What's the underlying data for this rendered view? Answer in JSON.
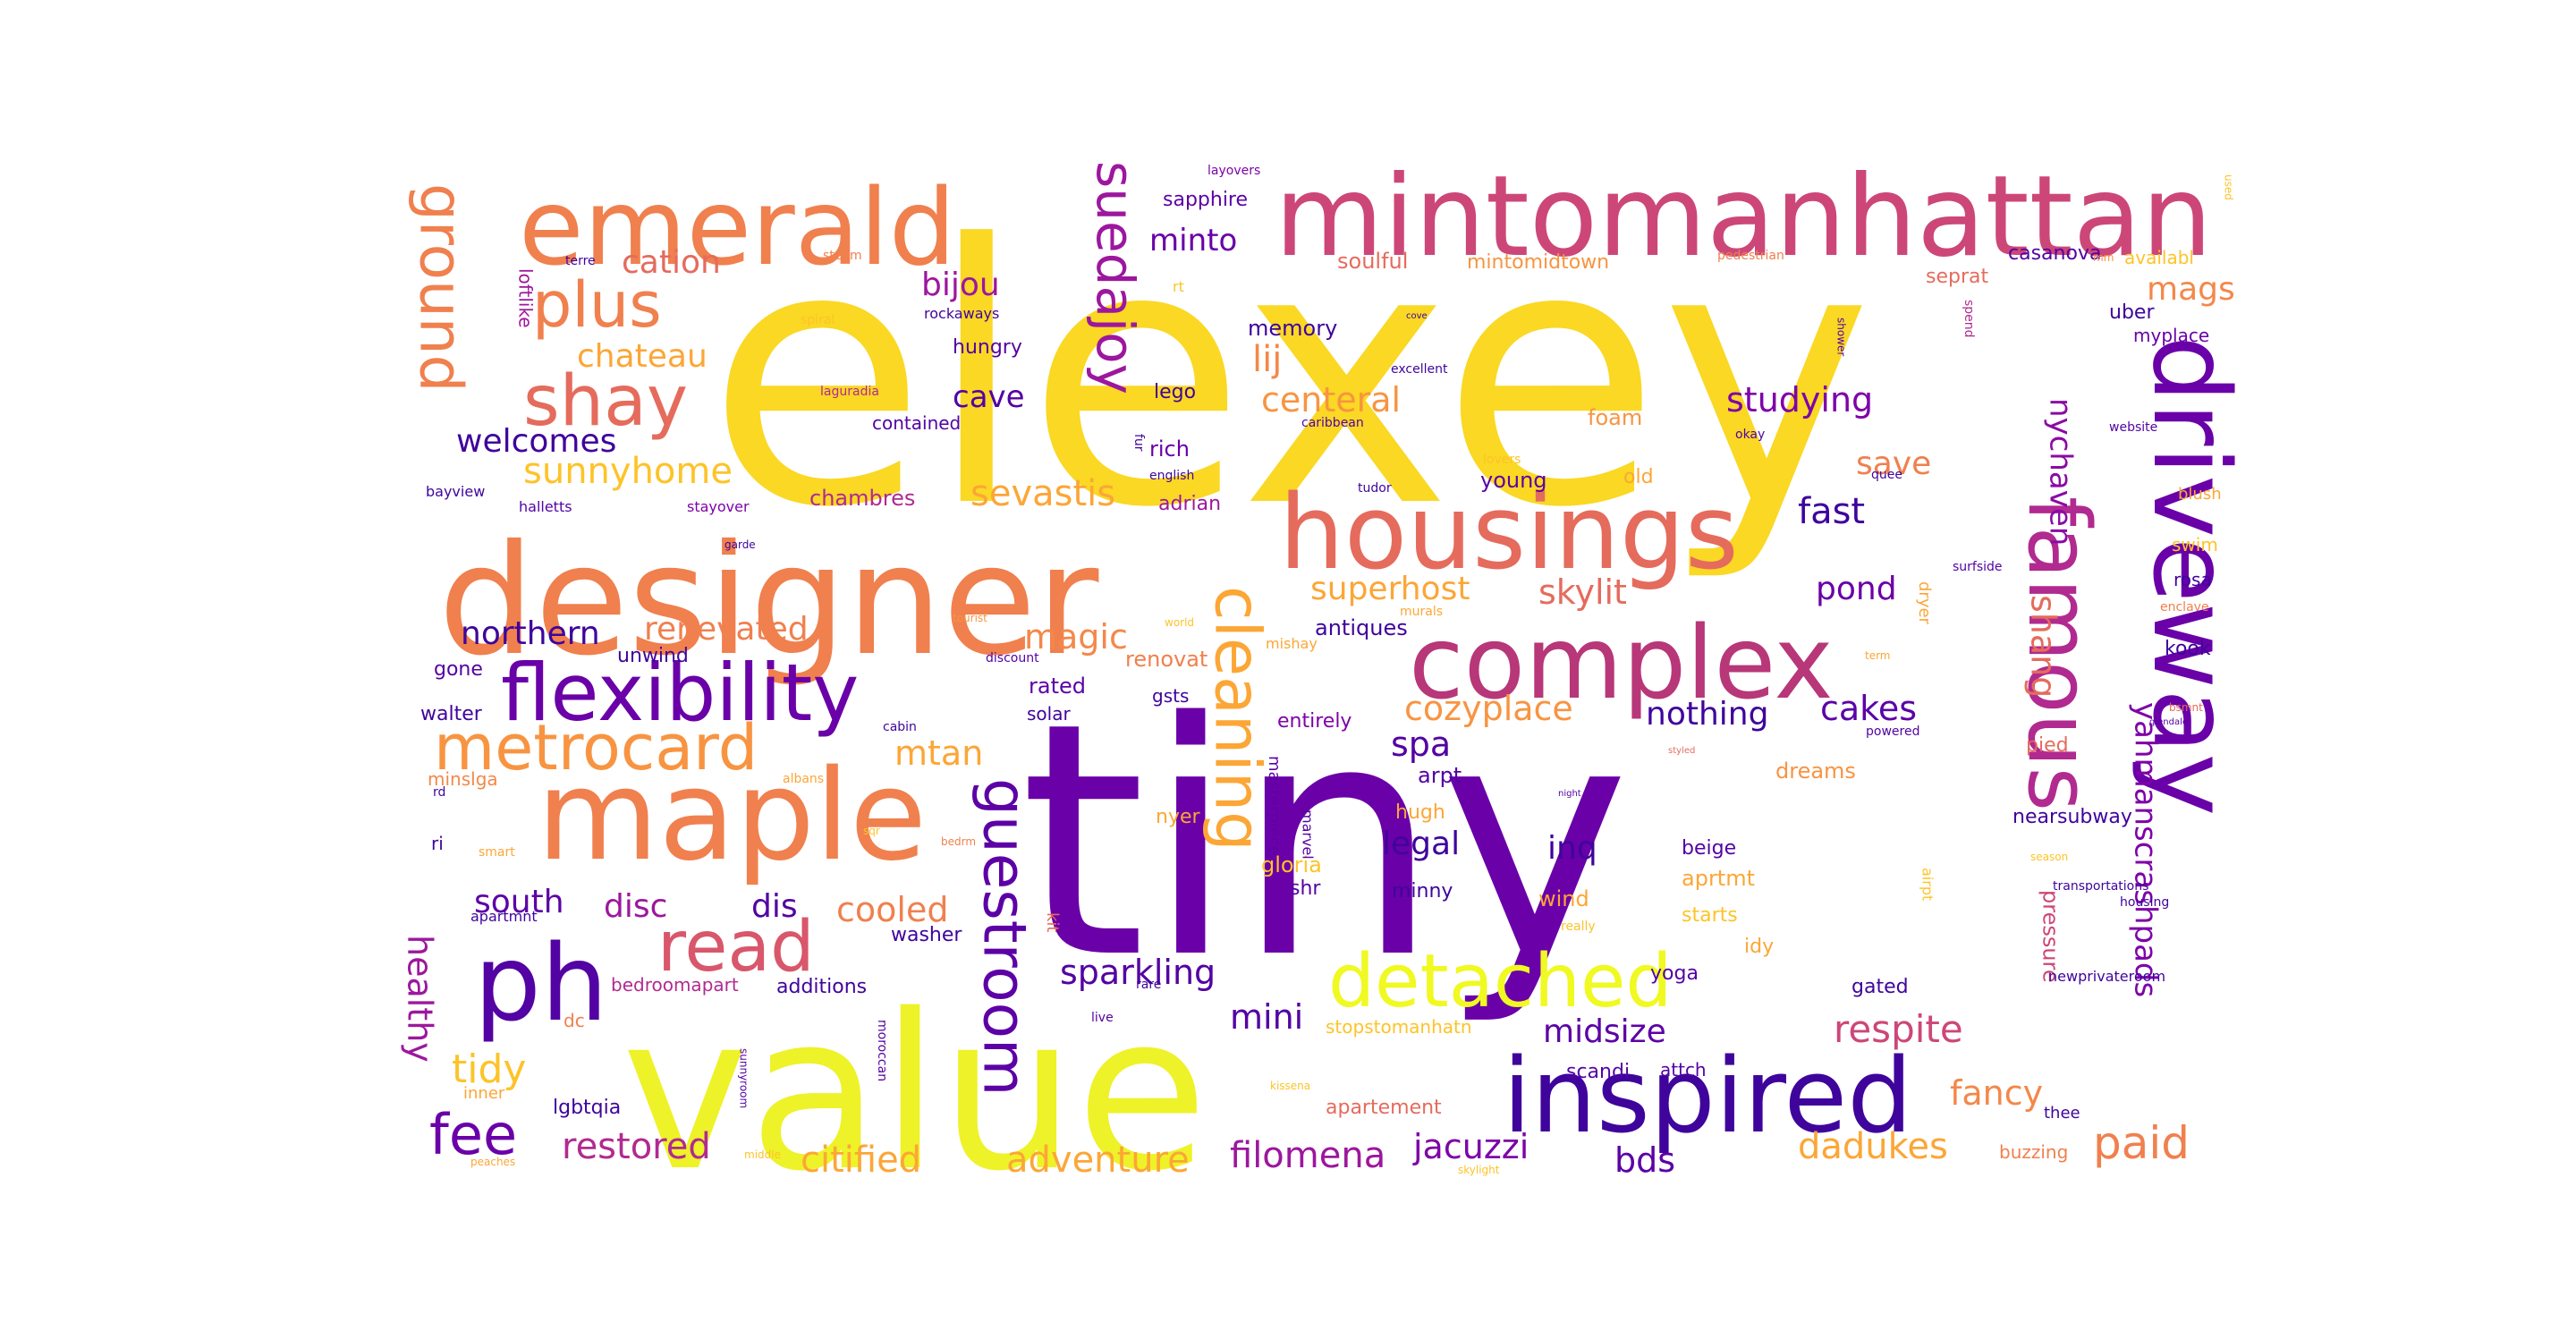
{
  "palette": "plasma",
  "words": [
    {
      "text": "elexey",
      "color": "#fad824"
    },
    {
      "text": "tiny",
      "color": "#6a00a8"
    },
    {
      "text": "value",
      "color": "#eef228"
    },
    {
      "text": "designer",
      "color": "#f0804e"
    },
    {
      "text": "mintomanhattan",
      "color": "#cc4778"
    },
    {
      "text": "emerald",
      "color": "#f0804e"
    },
    {
      "text": "housings",
      "color": "#e56b5d"
    },
    {
      "text": "driveway",
      "color": "#6a00a8"
    },
    {
      "text": "maple",
      "color": "#f0804e"
    },
    {
      "text": "complex",
      "color": "#b73779"
    },
    {
      "text": "famous",
      "color": "#b12a90"
    },
    {
      "text": "inspired",
      "color": "#3f049c"
    },
    {
      "text": "flexibility",
      "color": "#6a00a8"
    },
    {
      "text": "ph",
      "color": "#5302a3"
    },
    {
      "text": "detached",
      "color": "#f0f921"
    },
    {
      "text": "shay",
      "color": "#e56b5d"
    },
    {
      "text": "read",
      "color": "#d8576b"
    },
    {
      "text": "guestroom",
      "color": "#5c01a6"
    },
    {
      "text": "cleaning",
      "color": "#fca636"
    },
    {
      "text": "suedajoy",
      "color": "#9c179e"
    },
    {
      "text": "metrocard",
      "color": "#f89441"
    },
    {
      "text": "plus",
      "color": "#f0804e"
    },
    {
      "text": "ground",
      "color": "#f0804e"
    },
    {
      "text": "yahmanscrashpads",
      "color": "#7e03a8"
    },
    {
      "text": "nychaven",
      "color": "#8b0aa5"
    },
    {
      "text": "fee",
      "color": "#6a00a8"
    },
    {
      "text": "paid",
      "color": "#f0804e"
    },
    {
      "text": "mags",
      "color": "#f48849"
    },
    {
      "text": "sunnyhome",
      "color": "#fdc328"
    },
    {
      "text": "welcomes",
      "color": "#3f049c"
    },
    {
      "text": "cation",
      "color": "#e56b5d"
    },
    {
      "text": "bijou",
      "color": "#9c179e"
    },
    {
      "text": "chateau",
      "color": "#fca636"
    },
    {
      "text": "cave",
      "color": "#5302a3"
    },
    {
      "text": "lij",
      "color": "#f48849"
    },
    {
      "text": "minto",
      "color": "#6a00a8"
    },
    {
      "text": "centeral",
      "color": "#f89441"
    },
    {
      "text": "studying",
      "color": "#7e03a8"
    },
    {
      "text": "save",
      "color": "#f0804e"
    },
    {
      "text": "fast",
      "color": "#3f049c"
    },
    {
      "text": "pond",
      "color": "#6a00a8"
    },
    {
      "text": "superhost",
      "color": "#fca636"
    },
    {
      "text": "skylit",
      "color": "#e56b5d"
    },
    {
      "text": "sevastis",
      "color": "#fca636"
    },
    {
      "text": "renevated",
      "color": "#f0804e"
    },
    {
      "text": "northern",
      "color": "#3f049c"
    },
    {
      "text": "magic",
      "color": "#f48849"
    },
    {
      "text": "nothing",
      "color": "#3f049c"
    },
    {
      "text": "cakes",
      "color": "#5c01a6"
    },
    {
      "text": "cozyplace",
      "color": "#f89441"
    },
    {
      "text": "spa",
      "color": "#5302a3"
    },
    {
      "text": "mtan",
      "color": "#fca636"
    },
    {
      "text": "legal",
      "color": "#3f049c"
    },
    {
      "text": "inq",
      "color": "#3f049c"
    },
    {
      "text": "shang",
      "color": "#e56b5d"
    },
    {
      "text": "south",
      "color": "#5c01a6"
    },
    {
      "text": "disc",
      "color": "#9c179e"
    },
    {
      "text": "dis",
      "color": "#5302a3"
    },
    {
      "text": "cooled",
      "color": "#f0804e"
    },
    {
      "text": "sparkling",
      "color": "#5302a3"
    },
    {
      "text": "midsize",
      "color": "#5c01a6"
    },
    {
      "text": "respite",
      "color": "#cc4778"
    },
    {
      "text": "mini",
      "color": "#5302a3"
    },
    {
      "text": "tidy",
      "color": "#fdc328"
    },
    {
      "text": "fancy",
      "color": "#f48849"
    },
    {
      "text": "restored",
      "color": "#b12a90"
    },
    {
      "text": "citified",
      "color": "#fca636"
    },
    {
      "text": "adventure",
      "color": "#fca636"
    },
    {
      "text": "filomena",
      "color": "#9c179e"
    },
    {
      "text": "jacuzzi",
      "color": "#7e03a8"
    },
    {
      "text": "bds",
      "color": "#5c01a6"
    },
    {
      "text": "dadukes",
      "color": "#fca636"
    },
    {
      "text": "healthy",
      "color": "#9c179e"
    },
    {
      "text": "pressure",
      "color": "#cc4778"
    },
    {
      "text": "sapphire",
      "color": "#5c01a6"
    },
    {
      "text": "soulful",
      "color": "#e56b5d"
    },
    {
      "text": "mintomidtown",
      "color": "#f89441"
    },
    {
      "text": "memory",
      "color": "#3f049c"
    },
    {
      "text": "hungry",
      "color": "#5302a3"
    },
    {
      "text": "contained",
      "color": "#5302a3"
    },
    {
      "text": "lego",
      "color": "#3f049c"
    },
    {
      "text": "rich",
      "color": "#6a00a8"
    },
    {
      "text": "foam",
      "color": "#f89441"
    },
    {
      "text": "young",
      "color": "#5c01a6"
    },
    {
      "text": "old",
      "color": "#fca636"
    },
    {
      "text": "adrian",
      "color": "#9c179e"
    },
    {
      "text": "chambres",
      "color": "#b12a90"
    },
    {
      "text": "antiques",
      "color": "#3f049c"
    },
    {
      "text": "renovat",
      "color": "#f0804e"
    },
    {
      "text": "unwind",
      "color": "#3f049c"
    },
    {
      "text": "gone",
      "color": "#5302a3"
    },
    {
      "text": "walter",
      "color": "#3f049c"
    },
    {
      "text": "rated",
      "color": "#5c01a6"
    },
    {
      "text": "solar",
      "color": "#3f049c"
    },
    {
      "text": "gsts",
      "color": "#3f049c"
    },
    {
      "text": "entirely",
      "color": "#7e03a8"
    },
    {
      "text": "arpt",
      "color": "#5302a3"
    },
    {
      "text": "hugh",
      "color": "#fca636"
    },
    {
      "text": "dreams",
      "color": "#f89441"
    },
    {
      "text": "nyer",
      "color": "#fca636"
    },
    {
      "text": "nearsubway",
      "color": "#3f049c"
    },
    {
      "text": "beige",
      "color": "#5302a3"
    },
    {
      "text": "aprtmt",
      "color": "#fca636"
    },
    {
      "text": "starts",
      "color": "#fdc328"
    },
    {
      "text": "idy",
      "color": "#fca636"
    },
    {
      "text": "yoga",
      "color": "#5302a3"
    },
    {
      "text": "gated",
      "color": "#3f049c"
    },
    {
      "text": "wind",
      "color": "#fca636"
    },
    {
      "text": "gloria",
      "color": "#fdc328"
    },
    {
      "text": "shr",
      "color": "#5302a3"
    },
    {
      "text": "minny",
      "color": "#3f049c"
    },
    {
      "text": "washer",
      "color": "#3f049c"
    },
    {
      "text": "additions",
      "color": "#3f049c"
    },
    {
      "text": "bedroomapart",
      "color": "#b12a90"
    },
    {
      "text": "lgbtqia",
      "color": "#3f049c"
    },
    {
      "text": "apartement",
      "color": "#e56b5d"
    },
    {
      "text": "scandi",
      "color": "#5302a3"
    },
    {
      "text": "attch",
      "color": "#5302a3"
    },
    {
      "text": "stopstomanhatn",
      "color": "#fdc328"
    },
    {
      "text": "buzzing",
      "color": "#f0804e"
    },
    {
      "text": "thee",
      "color": "#3f049c"
    },
    {
      "text": "kook",
      "color": "#3f049c"
    },
    {
      "text": "rosa",
      "color": "#3f049c"
    },
    {
      "text": "swim",
      "color": "#fdc328"
    },
    {
      "text": "blush",
      "color": "#fca636"
    },
    {
      "text": "seprat",
      "color": "#e56b5d"
    },
    {
      "text": "casanova",
      "color": "#5302a3"
    },
    {
      "text": "availabl",
      "color": "#fdc328"
    },
    {
      "text": "myplace",
      "color": "#6a00a8"
    },
    {
      "text": "uber",
      "color": "#3f049c"
    },
    {
      "text": "pied",
      "color": "#e56b5d"
    },
    {
      "text": "newprivateroom",
      "color": "#3f049c"
    },
    {
      "text": "bayview",
      "color": "#3f049c"
    },
    {
      "text": "halletts",
      "color": "#5302a3"
    },
    {
      "text": "stayover",
      "color": "#7e03a8"
    },
    {
      "text": "loftlike",
      "color": "#9c179e"
    },
    {
      "text": "minslga",
      "color": "#f48849"
    },
    {
      "text": "ri",
      "color": "#3f049c"
    },
    {
      "text": "apartmnt",
      "color": "#3f049c"
    },
    {
      "text": "inner",
      "color": "#fca636"
    },
    {
      "text": "dc",
      "color": "#f0804e"
    },
    {
      "text": "rockaways",
      "color": "#3f049c"
    },
    {
      "text": "excellent",
      "color": "#3f049c"
    },
    {
      "text": "laguradia",
      "color": "#b12a90"
    },
    {
      "text": "tudor",
      "color": "#3f049c"
    },
    {
      "text": "english",
      "color": "#3f049c"
    },
    {
      "text": "dryer",
      "color": "#fca636"
    },
    {
      "text": "masterpiece",
      "color": "#5c01a6"
    },
    {
      "text": "marvel",
      "color": "#5302a3"
    },
    {
      "text": "kit",
      "color": "#e56b5d"
    },
    {
      "text": "airpt",
      "color": "#fdc328"
    },
    {
      "text": "live",
      "color": "#5302a3"
    },
    {
      "text": "sunnyroom",
      "color": "#5302a3"
    },
    {
      "text": "moroccan",
      "color": "#5302a3"
    },
    {
      "text": "layovers",
      "color": "#7e03a8"
    },
    {
      "text": "steam",
      "color": "#f0804e"
    },
    {
      "text": "terre",
      "color": "#3f049c"
    },
    {
      "text": "spiral",
      "color": "#fdc328"
    },
    {
      "text": "pedestrian",
      "color": "#f0804e"
    },
    {
      "text": "mm",
      "color": "#f89441"
    },
    {
      "text": "used",
      "color": "#fdc328"
    },
    {
      "text": "rt",
      "color": "#fdc328"
    },
    {
      "text": "cove",
      "color": "#3f049c"
    },
    {
      "text": "spend",
      "color": "#b12a90"
    },
    {
      "text": "shower",
      "color": "#5302a3"
    },
    {
      "text": "okay",
      "color": "#5302a3"
    },
    {
      "text": "website",
      "color": "#5302a3"
    },
    {
      "text": "caribbean",
      "color": "#5302a3"
    },
    {
      "text": "lovers",
      "color": "#fdc328"
    },
    {
      "text": "quee",
      "color": "#3f049c"
    },
    {
      "text": "fur",
      "color": "#3f049c"
    },
    {
      "text": "surfside",
      "color": "#5302a3"
    },
    {
      "text": "enclave",
      "color": "#f0804e"
    },
    {
      "text": "garde",
      "color": "#3f049c"
    },
    {
      "text": "tourist",
      "color": "#f89441"
    },
    {
      "text": "world",
      "color": "#fdc328"
    },
    {
      "text": "murals",
      "color": "#fca636"
    },
    {
      "text": "mishay",
      "color": "#fca636"
    },
    {
      "text": "term",
      "color": "#fca636"
    },
    {
      "text": "discount",
      "color": "#5302a3"
    },
    {
      "text": "cabin",
      "color": "#3f049c"
    },
    {
      "text": "albans",
      "color": "#fca636"
    },
    {
      "text": "sqr",
      "color": "#fdc328"
    },
    {
      "text": "bedrm",
      "color": "#f0804e"
    },
    {
      "text": "smart",
      "color": "#fca636"
    },
    {
      "text": "rd",
      "color": "#3f049c"
    },
    {
      "text": "styled",
      "color": "#e56b5d"
    },
    {
      "text": "night",
      "color": "#5302a3"
    },
    {
      "text": "powered",
      "color": "#5302a3"
    },
    {
      "text": "bsmnt",
      "color": "#e56b5d"
    },
    {
      "text": "giendale",
      "color": "#5302a3"
    },
    {
      "text": "season",
      "color": "#fdc328"
    },
    {
      "text": "transportations",
      "color": "#3f049c"
    },
    {
      "text": "housing",
      "color": "#3f049c"
    },
    {
      "text": "really",
      "color": "#fdc328"
    },
    {
      "text": "rare",
      "color": "#3f049c"
    },
    {
      "text": "kissena",
      "color": "#fdc328"
    },
    {
      "text": "peaches",
      "color": "#fca636"
    },
    {
      "text": "middle",
      "color": "#fdc328"
    },
    {
      "text": "skylight",
      "color": "#fdc328"
    }
  ]
}
